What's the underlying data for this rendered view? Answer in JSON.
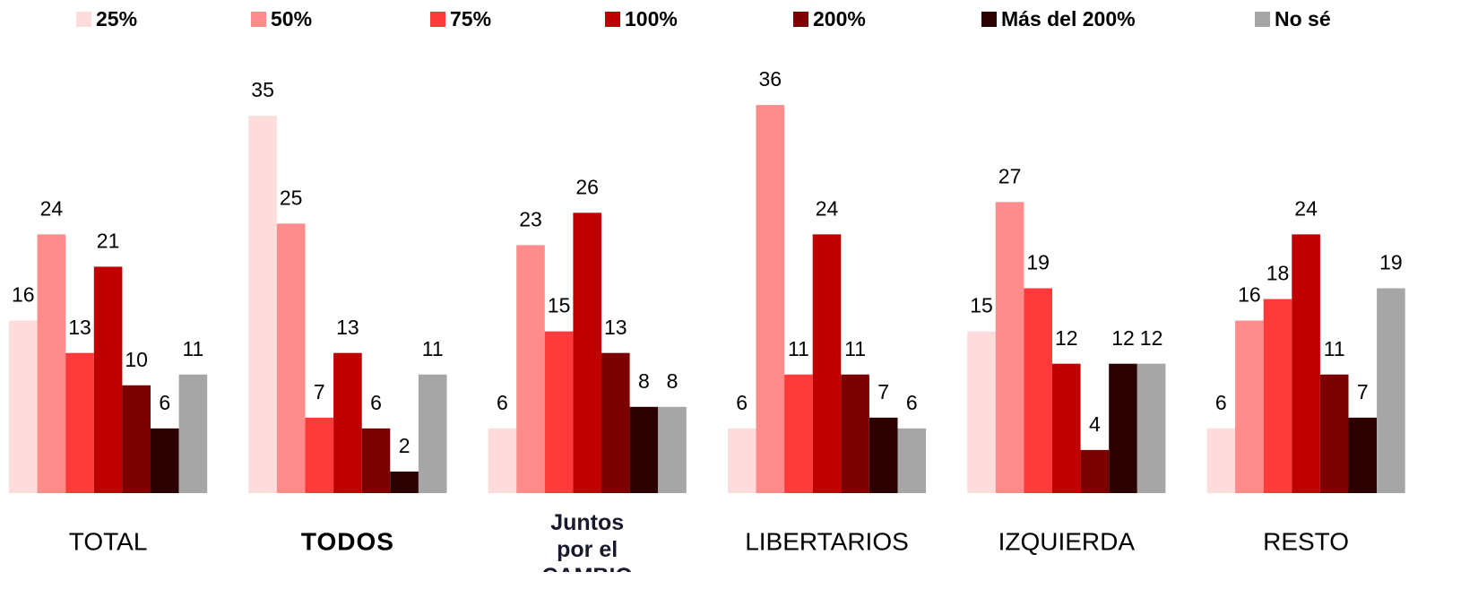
{
  "chart_data": {
    "type": "bar",
    "categories": [
      "TOTAL",
      "TODOS",
      "Juntos por el CAMBIO",
      "LIBERTARIOS",
      "IZQUIERDA",
      "RESTO"
    ],
    "series": [
      {
        "name": "25%",
        "color": "#ffdcdc",
        "values": [
          16,
          35,
          6,
          6,
          15,
          6
        ]
      },
      {
        "name": "50%",
        "color": "#ff8b8b",
        "values": [
          24,
          25,
          23,
          36,
          27,
          16
        ]
      },
      {
        "name": "75%",
        "color": "#ff3a3a",
        "values": [
          13,
          7,
          15,
          11,
          19,
          18
        ]
      },
      {
        "name": "100%",
        "color": "#c00000",
        "values": [
          21,
          13,
          26,
          24,
          12,
          24
        ]
      },
      {
        "name": "200%",
        "color": "#7b0000",
        "values": [
          10,
          6,
          13,
          11,
          4,
          11
        ]
      },
      {
        "name": "Más del 200%",
        "color": "#2b0000",
        "values": [
          6,
          2,
          8,
          7,
          12,
          7
        ]
      },
      {
        "name": "No sé",
        "color": "#a6a6a6",
        "values": [
          11,
          11,
          8,
          6,
          12,
          19
        ]
      }
    ],
    "ylim": [
      0,
      40
    ],
    "legend": "top"
  }
}
